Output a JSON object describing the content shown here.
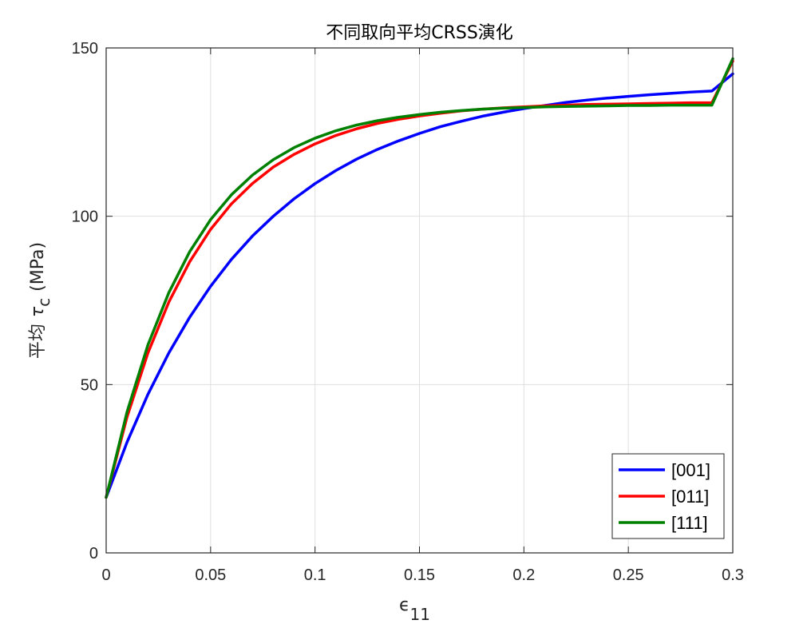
{
  "chart_data": {
    "type": "line",
    "title": "不同取向平均CRSS演化",
    "xlabel": "ϵ",
    "xlabel_sub": "11",
    "ylabel_prefix": "平均",
    "ylabel_symbol": "τ",
    "ylabel_sub": "c",
    "ylabel_unit": "(MPa)",
    "xlim": [
      0,
      0.3
    ],
    "ylim": [
      0,
      150
    ],
    "x_ticks": [
      0,
      0.05,
      0.1,
      0.15,
      0.2,
      0.25,
      0.3
    ],
    "x_tick_labels": [
      "0",
      "0.05",
      "0.1",
      "0.15",
      "0.2",
      "0.25",
      "0.3"
    ],
    "y_ticks": [
      0,
      50,
      100,
      150
    ],
    "y_tick_labels": [
      "0",
      "50",
      "100",
      "150"
    ],
    "grid": true,
    "legend_position": "bottom-right",
    "x": [
      0,
      0.01,
      0.02,
      0.03,
      0.04,
      0.05,
      0.06,
      0.07,
      0.08,
      0.09,
      0.1,
      0.11,
      0.12,
      0.13,
      0.14,
      0.15,
      0.16,
      0.17,
      0.18,
      0.19,
      0.2,
      0.21,
      0.22,
      0.23,
      0.24,
      0.25,
      0.26,
      0.27,
      0.28,
      0.29,
      0.3
    ],
    "series": [
      {
        "name": "[001]",
        "color": "#0000ff",
        "values": [
          16.5,
          32.9,
          47.1,
          59.4,
          70.0,
          79.2,
          87.2,
          94.1,
          100.0,
          105.2,
          109.7,
          113.6,
          117.0,
          119.9,
          122.4,
          124.6,
          126.6,
          128.2,
          129.7,
          130.9,
          132.0,
          132.9,
          133.8,
          134.5,
          135.1,
          135.6,
          136.1,
          136.5,
          136.9,
          137.2,
          142.3
        ]
      },
      {
        "name": "[011]",
        "color": "#ff0000",
        "values": [
          16.5,
          40.4,
          59.4,
          74.5,
          86.5,
          96.1,
          103.7,
          109.7,
          114.6,
          118.4,
          121.5,
          124.0,
          126.0,
          127.6,
          128.8,
          129.8,
          130.6,
          131.3,
          131.8,
          132.2,
          132.5,
          132.8,
          133.0,
          133.2,
          133.3,
          133.4,
          133.5,
          133.6,
          133.7,
          133.7,
          146.1
        ]
      },
      {
        "name": "[111]",
        "color": "#008000",
        "values": [
          16.5,
          41.9,
          61.8,
          77.3,
          89.5,
          99.0,
          106.4,
          112.2,
          116.8,
          120.4,
          123.2,
          125.4,
          127.1,
          128.4,
          129.4,
          130.2,
          130.9,
          131.4,
          131.8,
          132.1,
          132.3,
          132.5,
          132.6,
          132.7,
          132.8,
          132.9,
          132.9,
          133.0,
          133.0,
          133.0,
          146.8
        ]
      }
    ]
  }
}
